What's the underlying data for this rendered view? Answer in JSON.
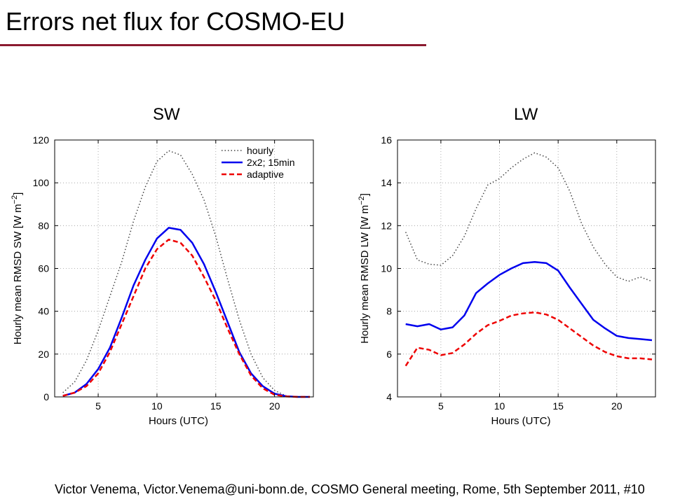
{
  "slide": {
    "title": "Errors net flux for COSMO-EU",
    "footer": "Victor Venema, Victor.Venema@uni-bonn.de, COSMO General meeting, Rome, 5th September 2011, #10",
    "accent_color": "#8B1A2F"
  },
  "chart_data": [
    {
      "type": "line",
      "title": "SW",
      "xlabel": "Hours (UTC)",
      "ylabel": "Hourly mean RMSD SW [W m",
      "ylabel_exp": "−2",
      "ylabel_end": "]",
      "xlim": [
        1.3,
        23.3
      ],
      "ylim": [
        0,
        120
      ],
      "xticks": [
        5,
        10,
        15,
        20
      ],
      "yticks": [
        0,
        20,
        40,
        60,
        80,
        100,
        120
      ],
      "grid": true,
      "legend_position": "top-right",
      "series": [
        {
          "name": "hourly",
          "color": "#444444",
          "style": "dotted",
          "x": [
            2,
            3,
            4,
            5,
            6,
            7,
            8,
            9,
            10,
            11,
            12,
            13,
            14,
            15,
            16,
            17,
            18,
            19,
            20,
            21,
            22,
            23
          ],
          "y": [
            2,
            7,
            17,
            31,
            47,
            63,
            82,
            98,
            110,
            115,
            113,
            104,
            92,
            75,
            55,
            36,
            20,
            9,
            3,
            0.5,
            0,
            0
          ]
        },
        {
          "name": "2x2; 15min",
          "color": "#0000EE",
          "style": "solid",
          "x": [
            2,
            3,
            4,
            5,
            6,
            7,
            8,
            9,
            10,
            11,
            12,
            13,
            14,
            15,
            16,
            17,
            18,
            19,
            20,
            21,
            22,
            23
          ],
          "y": [
            0.5,
            2,
            6,
            13,
            23,
            37,
            52,
            64,
            74,
            79,
            78,
            72,
            62,
            49,
            35,
            21,
            11,
            5,
            1.5,
            0.3,
            0,
            0
          ]
        },
        {
          "name": "adaptive",
          "color": "#EE0000",
          "style": "dashed",
          "x": [
            2,
            3,
            4,
            5,
            6,
            7,
            8,
            9,
            10,
            11,
            12,
            13,
            14,
            15,
            16,
            17,
            18,
            19,
            20,
            21,
            22,
            23
          ],
          "y": [
            0.5,
            2,
            5,
            11,
            21,
            34,
            47,
            60,
            69,
            73.5,
            72,
            66,
            56,
            45,
            32,
            20,
            10,
            4,
            1,
            0.2,
            0,
            0
          ]
        }
      ]
    },
    {
      "type": "line",
      "title": "LW",
      "xlabel": "Hours (UTC)",
      "ylabel": "Hourly mean RMSD LW [W m",
      "ylabel_exp": "−2",
      "ylabel_end": "]",
      "xlim": [
        1.3,
        23.3
      ],
      "ylim": [
        4,
        16
      ],
      "xticks": [
        5,
        10,
        15,
        20
      ],
      "yticks": [
        4,
        6,
        8,
        10,
        12,
        14,
        16
      ],
      "grid": true,
      "series": [
        {
          "name": "hourly",
          "color": "#444444",
          "style": "dotted",
          "x": [
            2,
            3,
            4,
            5,
            6,
            7,
            8,
            9,
            10,
            11,
            12,
            13,
            14,
            15,
            16,
            17,
            18,
            19,
            20,
            21,
            22,
            23
          ],
          "y": [
            11.7,
            10.4,
            10.2,
            10.15,
            10.6,
            11.5,
            12.8,
            13.9,
            14.2,
            14.7,
            15.1,
            15.4,
            15.2,
            14.7,
            13.6,
            12.1,
            11,
            10.2,
            9.6,
            9.4,
            9.6,
            9.4
          ]
        },
        {
          "name": "2x2; 15min",
          "color": "#0000EE",
          "style": "solid",
          "x": [
            2,
            3,
            4,
            5,
            6,
            7,
            8,
            9,
            10,
            11,
            12,
            13,
            14,
            15,
            16,
            17,
            18,
            19,
            20,
            21,
            22,
            23
          ],
          "y": [
            7.4,
            7.3,
            7.4,
            7.15,
            7.25,
            7.8,
            8.85,
            9.3,
            9.7,
            10,
            10.25,
            10.3,
            10.25,
            9.9,
            9.1,
            8.35,
            7.6,
            7.2,
            6.85,
            6.75,
            6.7,
            6.65
          ]
        },
        {
          "name": "adaptive",
          "color": "#EE0000",
          "style": "dashed",
          "x": [
            2,
            3,
            4,
            5,
            6,
            7,
            8,
            9,
            10,
            11,
            12,
            13,
            14,
            15,
            16,
            17,
            18,
            19,
            20,
            21,
            22,
            23
          ],
          "y": [
            5.45,
            6.3,
            6.2,
            5.95,
            6.05,
            6.45,
            6.95,
            7.35,
            7.55,
            7.8,
            7.9,
            7.95,
            7.85,
            7.6,
            7.2,
            6.8,
            6.4,
            6.1,
            5.9,
            5.8,
            5.8,
            5.75
          ]
        }
      ]
    }
  ]
}
